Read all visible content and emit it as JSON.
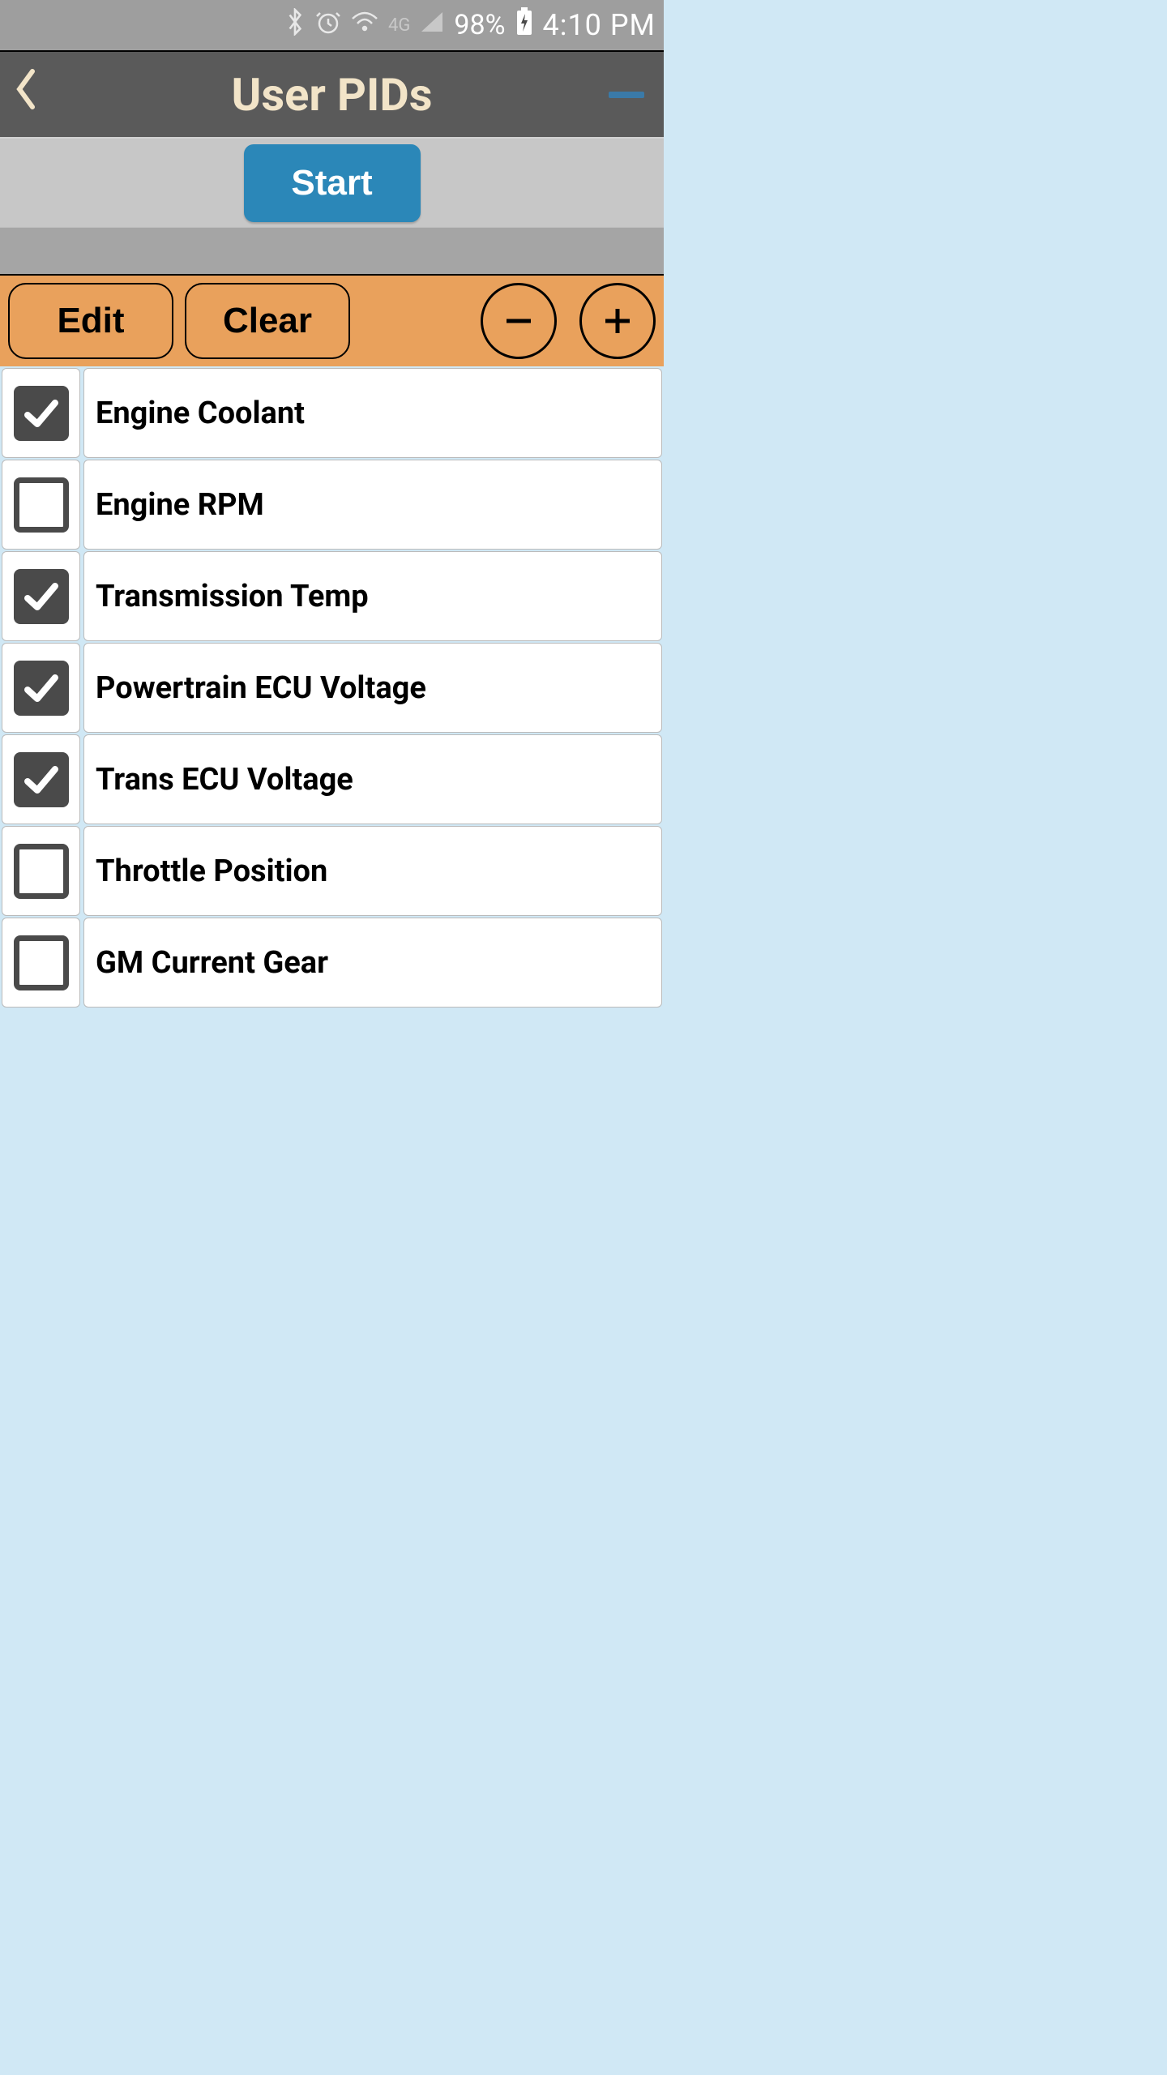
{
  "statusBar": {
    "batteryPct": "98%",
    "time": "4:10 PM"
  },
  "header": {
    "title": "User PIDs"
  },
  "start": {
    "label": "Start"
  },
  "actionBar": {
    "edit": "Edit",
    "clear": "Clear"
  },
  "pids": {
    "items": [
      {
        "label": "Engine Coolant",
        "checked": true
      },
      {
        "label": "Engine RPM",
        "checked": false
      },
      {
        "label": "Transmission Temp",
        "checked": true
      },
      {
        "label": "Powertrain ECU Voltage",
        "checked": true
      },
      {
        "label": "Trans ECU Voltage",
        "checked": true
      },
      {
        "label": "Throttle Position",
        "checked": false
      },
      {
        "label": "GM Current Gear",
        "checked": false
      }
    ]
  },
  "colors": {
    "statusBarBg": "#9e9e9e",
    "headerBg": "#5a5a5a",
    "headerText": "#f2e4c8",
    "startBtnBg": "#2b87b8",
    "actionBarBg": "#e9a15c",
    "checkboxFill": "#4a4a4a",
    "menuAccent": "#3a7aa8"
  }
}
